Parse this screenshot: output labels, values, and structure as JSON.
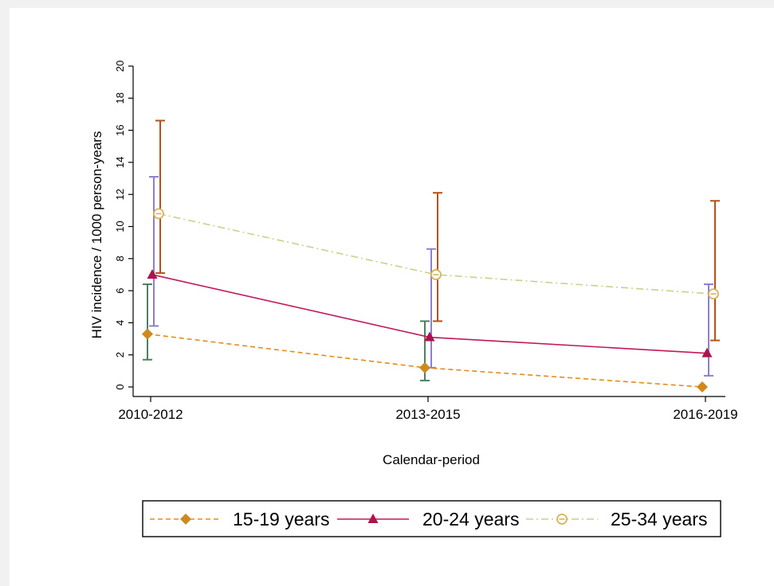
{
  "chart_data": {
    "type": "line",
    "categories": [
      "2010-2012",
      "2013-2015",
      "2016-2019"
    ],
    "xlabel": "Calendar-period",
    "ylabel": "HIV incidence / 1000 person-years",
    "ylim": [
      0,
      20
    ],
    "yticks": [
      0,
      2,
      4,
      6,
      8,
      10,
      12,
      14,
      16,
      18,
      20
    ],
    "grid": false,
    "legend_position": "bottom",
    "series": [
      {
        "name": "15-19 years",
        "values": [
          3.3,
          1.2,
          0.0
        ],
        "ci_lower": [
          1.7,
          0.4,
          null
        ],
        "ci_upper": [
          6.4,
          4.1,
          null
        ],
        "color": "#e88a1a",
        "marker_color": "#cf8a1e",
        "ci_color": "#4f7f63",
        "marker": "diamond",
        "line_style": "dashed"
      },
      {
        "name": "20-24 years",
        "values": [
          7.0,
          3.1,
          2.1
        ],
        "ci_lower": [
          3.8,
          1.2,
          0.7
        ],
        "ci_upper": [
          13.1,
          8.6,
          6.4
        ],
        "color": "#c2185b",
        "marker_color": "#b0124b",
        "ci_color": "#8b7fd0",
        "marker": "triangle",
        "line_style": "solid"
      },
      {
        "name": "25-34 years",
        "values": [
          10.8,
          7.0,
          5.8
        ],
        "ci_lower": [
          7.1,
          4.1,
          2.9
        ],
        "ci_upper": [
          16.6,
          12.1,
          11.6
        ],
        "color": "#c3d48c",
        "marker_color": "#d9b25a",
        "ci_color": "#b5521b",
        "marker": "circle-dash",
        "line_style": "dashdot"
      }
    ]
  }
}
